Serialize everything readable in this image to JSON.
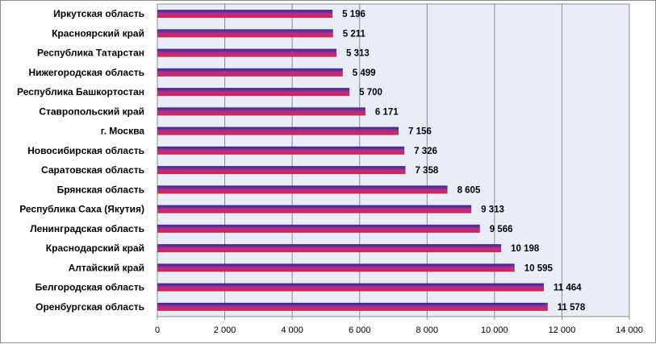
{
  "chart_data": {
    "type": "bar",
    "orientation": "horizontal",
    "categories": [
      "Иркутская область",
      "Красноярский край",
      "Республика Татарстан",
      "Нижегородская область",
      "Республика Башкортостан",
      "Ставропольский край",
      "г. Москва",
      "Новосибирская область",
      "Саратовская область",
      "Брянская область",
      "Республика Саха (Якутия)",
      "Ленинградская область",
      "Краснодарский край",
      "Алтайский край",
      "Белгородская область",
      "Оренбургская область"
    ],
    "values": [
      5196,
      5211,
      5313,
      5499,
      5700,
      6171,
      7156,
      7326,
      7358,
      8605,
      9313,
      9566,
      10198,
      10595,
      11464,
      11578
    ],
    "value_labels": [
      "5 196",
      "5 211",
      "5 313",
      "5 499",
      "5 700",
      "6 171",
      "7 156",
      "7 326",
      "7 358",
      "8 605",
      "9 313",
      "9 566",
      "10 198",
      "10 595",
      "11 464",
      "11 578"
    ],
    "xlim": [
      0,
      14000
    ],
    "x_ticks": [
      0,
      2000,
      4000,
      6000,
      8000,
      10000,
      12000,
      14000
    ],
    "x_tick_labels": [
      "0",
      "2 000",
      "4 000",
      "6 000",
      "8 000",
      "10 000",
      "12 000",
      "14 000"
    ],
    "grid": "vertical",
    "legend": "none",
    "colors": {
      "bar_top": "#2a2a9e",
      "bar_mid": "#b0308a",
      "bar_bottom": "#e0204a",
      "plot_background": "#e9edf5",
      "gridline": "#8c8c8c"
    }
  }
}
